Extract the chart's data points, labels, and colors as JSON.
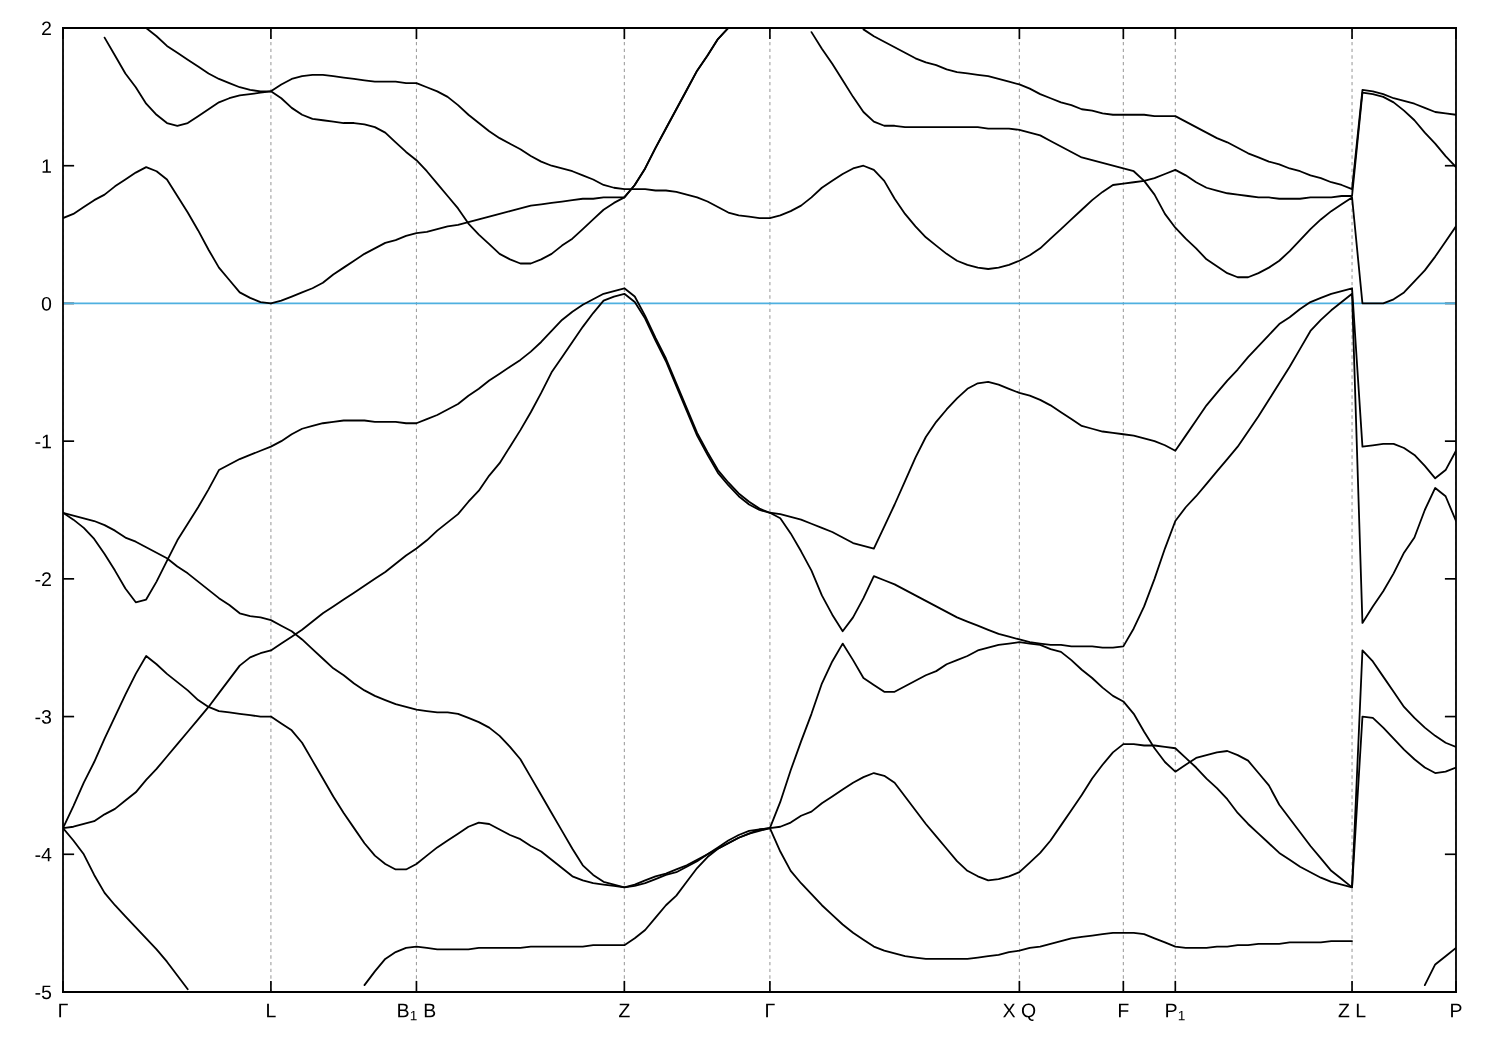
{
  "chart_data": {
    "type": "line",
    "categories": [
      "Γ",
      null,
      null,
      null,
      null,
      null,
      null,
      null,
      null,
      null,
      null,
      null,
      null,
      null,
      null,
      null,
      null,
      null,
      null,
      null,
      "L",
      null,
      null,
      null,
      null,
      null,
      null,
      null,
      null,
      null,
      null,
      null,
      null,
      null,
      "B$_{1}$ B",
      null,
      null,
      null,
      null,
      null,
      null,
      null,
      null,
      null,
      null,
      null,
      null,
      null,
      null,
      null,
      null,
      null,
      null,
      null,
      "Z",
      null,
      null,
      null,
      null,
      null,
      null,
      null,
      null,
      null,
      null,
      null,
      null,
      null,
      "Γ",
      null,
      null,
      null,
      null,
      null,
      null,
      null,
      null,
      null,
      null,
      null,
      null,
      null,
      null,
      null,
      null,
      null,
      null,
      null,
      null,
      null,
      null,
      null,
      "X Q",
      null,
      null,
      null,
      null,
      null,
      null,
      null,
      null,
      null,
      "F",
      null,
      null,
      null,
      null,
      "P$_{1}$",
      null,
      null,
      null,
      null,
      null,
      null,
      null,
      null,
      null,
      null,
      null,
      null,
      null,
      null,
      null,
      null,
      "Z L",
      null,
      null,
      null,
      null,
      null,
      null,
      null,
      null,
      null,
      "P"
    ],
    "ylim": [
      -5,
      2
    ],
    "yticks": [
      -5,
      -4,
      -3,
      -2,
      -1,
      0,
      1,
      2
    ],
    "grid": "x",
    "ref_lines": [
      {
        "axis": "y",
        "value": 0,
        "color": "#4fb0e0"
      }
    ],
    "series": [
      {
        "color": "#000000",
        "values": [
          -3.81,
          -3.9,
          -4.0,
          -4.15,
          -4.28,
          -4.37,
          -4.45,
          -4.53,
          -4.61,
          -4.69,
          -4.78,
          -4.88,
          -4.98,
          null,
          null,
          null,
          null,
          null,
          null,
          null,
          null,
          null,
          null,
          null,
          null,
          null,
          null,
          null,
          null,
          -4.95,
          -4.85,
          -4.76,
          -4.71,
          -4.68,
          -4.67,
          -4.68,
          -4.69,
          -4.69,
          -4.69,
          -4.69,
          -4.68,
          -4.68,
          -4.68,
          -4.68,
          -4.68,
          -4.67,
          -4.67,
          -4.67,
          -4.67,
          -4.67,
          -4.67,
          -4.66,
          -4.66,
          -4.66,
          -4.66,
          -4.61,
          -4.55,
          -4.46,
          -4.37,
          -4.3,
          -4.2,
          -4.1,
          -4.02,
          -3.96,
          -3.92,
          -3.88,
          -3.85,
          -3.83,
          -3.81,
          -3.98,
          -4.12,
          -4.21,
          -4.29,
          -4.37,
          -4.44,
          -4.51,
          -4.57,
          -4.62,
          -4.67,
          -4.7,
          -4.72,
          -4.74,
          -4.75,
          -4.76,
          -4.76,
          -4.76,
          -4.76,
          -4.76,
          -4.75,
          -4.74,
          -4.73,
          -4.71,
          -4.7,
          -4.68,
          -4.67,
          -4.65,
          -4.63,
          -4.61,
          -4.6,
          -4.59,
          -4.58,
          -4.57,
          -4.57,
          -4.57,
          -4.58,
          -4.61,
          -4.64,
          -4.67,
          -4.68,
          -4.68,
          -4.68,
          -4.67,
          -4.67,
          -4.66,
          -4.66,
          -4.65,
          -4.65,
          -4.65,
          -4.64,
          -4.64,
          -4.64,
          -4.64,
          -4.63,
          -4.63,
          -4.63,
          null,
          null,
          null,
          null,
          null,
          null,
          -4.95,
          -4.8,
          -4.74,
          -4.68
        ]
      },
      {
        "color": "#000000",
        "values": [
          -3.81,
          -3.65,
          -3.48,
          -3.33,
          -3.16,
          -3.0,
          -2.84,
          -2.69,
          -2.56,
          -2.62,
          -2.69,
          -2.75,
          -2.81,
          -2.88,
          -2.93,
          -2.96,
          -2.97,
          -2.98,
          -2.99,
          -3.0,
          -3.0,
          -3.05,
          -3.1,
          -3.19,
          -3.32,
          -3.45,
          -3.58,
          -3.7,
          -3.81,
          -3.92,
          -4.01,
          -4.07,
          -4.11,
          -4.11,
          -4.07,
          -4.01,
          -3.95,
          -3.9,
          -3.85,
          -3.8,
          -3.77,
          -3.78,
          -3.82,
          -3.86,
          -3.89,
          -3.94,
          -3.98,
          -4.04,
          -4.1,
          -4.16,
          -4.19,
          -4.21,
          -4.22,
          -4.23,
          -4.24,
          -4.22,
          -4.19,
          -4.16,
          -4.14,
          -4.11,
          -4.08,
          -4.04,
          -4.0,
          -3.95,
          -3.9,
          -3.86,
          -3.83,
          -3.82,
          -3.81,
          -3.8,
          -3.77,
          -3.72,
          -3.69,
          -3.63,
          -3.58,
          -3.53,
          -3.48,
          -3.44,
          -3.41,
          -3.43,
          -3.48,
          -3.58,
          -3.68,
          -3.78,
          -3.87,
          -3.96,
          -4.05,
          -4.12,
          -4.16,
          -4.19,
          -4.18,
          -4.16,
          -4.13,
          -4.06,
          -3.99,
          -3.9,
          -3.79,
          -3.68,
          -3.57,
          -3.45,
          -3.35,
          -3.26,
          -3.2,
          -3.2,
          -3.21,
          -3.21,
          -3.22,
          -3.23,
          -3.3,
          -3.37,
          -3.45,
          -3.52,
          -3.6,
          -3.7,
          -3.78,
          -3.85,
          -3.92,
          -3.99,
          -4.04,
          -4.09,
          -4.13,
          -4.17,
          -4.2,
          -4.22,
          -4.24,
          -3.0,
          -3.01,
          -3.08,
          -3.16,
          -3.24,
          -3.31,
          -3.37,
          -3.41,
          -3.4,
          -3.37
        ]
      },
      {
        "color": "#000000",
        "values": [
          -3.81,
          -3.8,
          -3.78,
          -3.76,
          -3.71,
          -3.67,
          -3.61,
          -3.55,
          -3.46,
          -3.38,
          -3.29,
          -3.2,
          -3.11,
          -3.02,
          -2.93,
          -2.83,
          -2.73,
          -2.63,
          -2.57,
          -2.54,
          -2.52,
          -2.47,
          -2.42,
          -2.37,
          -2.31,
          -2.25,
          -2.2,
          -2.15,
          -2.1,
          -2.05,
          -2.0,
          -1.95,
          -1.89,
          -1.83,
          -1.78,
          -1.72,
          -1.65,
          -1.59,
          -1.53,
          -1.44,
          -1.36,
          -1.25,
          -1.16,
          -1.04,
          -0.92,
          -0.79,
          -0.65,
          -0.5,
          -0.39,
          -0.28,
          -0.17,
          -0.07,
          0.02,
          0.05,
          0.07,
          0.01,
          -0.11,
          -0.27,
          -0.42,
          -0.6,
          -0.78,
          -0.96,
          -1.1,
          -1.23,
          -1.32,
          -1.4,
          -1.46,
          -1.5,
          -1.52,
          -1.56,
          -1.67,
          -1.8,
          -1.94,
          -2.12,
          -2.26,
          -2.38,
          -2.28,
          -2.14,
          -1.98,
          -2.01,
          -2.04,
          -2.08,
          -2.12,
          -2.16,
          -2.2,
          -2.24,
          -2.28,
          -2.31,
          -2.34,
          -2.37,
          -2.4,
          -2.42,
          -2.44,
          -2.46,
          -2.47,
          -2.48,
          -2.48,
          -2.49,
          -2.49,
          -2.49,
          -2.5,
          -2.5,
          -2.49,
          -2.36,
          -2.2,
          -2.0,
          -1.78,
          -1.58,
          -1.48,
          -1.4,
          -1.31,
          -1.22,
          -1.13,
          -1.04,
          -0.93,
          -0.82,
          -0.7,
          -0.58,
          -0.46,
          -0.33,
          -0.2,
          -0.12,
          -0.05,
          0.01,
          0.07,
          -2.32,
          -2.2,
          -2.09,
          -1.96,
          -1.81,
          -1.7,
          -1.5,
          -1.34,
          -1.4,
          -1.58
        ]
      },
      {
        "color": "#000000",
        "values": [
          -1.52,
          -1.54,
          -1.56,
          -1.58,
          -1.61,
          -1.65,
          -1.7,
          -1.73,
          -1.77,
          -1.81,
          -1.85,
          -1.91,
          -1.96,
          -2.02,
          -2.08,
          -2.14,
          -2.19,
          -2.25,
          -2.27,
          -2.28,
          -2.3,
          -2.34,
          -2.38,
          -2.44,
          -2.51,
          -2.58,
          -2.65,
          -2.7,
          -2.76,
          -2.81,
          -2.85,
          -2.88,
          -2.91,
          -2.93,
          -2.95,
          -2.96,
          -2.97,
          -2.97,
          -2.98,
          -3.01,
          -3.04,
          -3.08,
          -3.14,
          -3.22,
          -3.31,
          -3.44,
          -3.57,
          -3.7,
          -3.83,
          -3.96,
          -4.08,
          -4.15,
          -4.2,
          -4.22,
          -4.24,
          -4.23,
          -4.21,
          -4.18,
          -4.15,
          -4.13,
          -4.09,
          -4.05,
          -4.0,
          -3.96,
          -3.92,
          -3.88,
          -3.85,
          -3.82,
          -3.81,
          -3.62,
          -3.39,
          -3.18,
          -2.98,
          -2.76,
          -2.6,
          -2.47,
          -2.59,
          -2.72,
          -2.77,
          -2.82,
          -2.82,
          -2.78,
          -2.74,
          -2.7,
          -2.67,
          -2.62,
          -2.59,
          -2.56,
          -2.52,
          -2.5,
          -2.48,
          -2.47,
          -2.46,
          -2.47,
          -2.48,
          -2.51,
          -2.53,
          -2.59,
          -2.66,
          -2.72,
          -2.79,
          -2.85,
          -2.89,
          -2.98,
          -3.11,
          -3.23,
          -3.33,
          -3.4,
          -3.35,
          -3.3,
          -3.28,
          -3.26,
          -3.25,
          -3.28,
          -3.32,
          -3.41,
          -3.5,
          -3.64,
          -3.74,
          -3.84,
          -3.94,
          -4.03,
          -4.12,
          -4.18,
          -4.24,
          -2.52,
          -2.6,
          -2.71,
          -2.82,
          -2.93,
          -3.01,
          -3.08,
          -3.14,
          -3.19,
          -3.22
        ]
      },
      {
        "color": "#000000",
        "values": [
          -1.52,
          -1.57,
          -1.63,
          -1.71,
          -1.82,
          -1.94,
          -2.07,
          -2.17,
          -2.15,
          -2.02,
          -1.87,
          -1.72,
          -1.6,
          -1.48,
          -1.35,
          -1.21,
          -1.17,
          -1.13,
          -1.1,
          -1.07,
          -1.04,
          -1.0,
          -0.95,
          -0.91,
          -0.89,
          -0.87,
          -0.86,
          -0.85,
          -0.85,
          -0.85,
          -0.86,
          -0.86,
          -0.86,
          -0.87,
          -0.87,
          -0.84,
          -0.81,
          -0.77,
          -0.73,
          -0.67,
          -0.62,
          -0.56,
          -0.51,
          -0.46,
          -0.41,
          -0.35,
          -0.28,
          -0.2,
          -0.12,
          -0.06,
          -0.01,
          0.03,
          0.07,
          0.09,
          0.11,
          0.05,
          -0.09,
          -0.25,
          -0.4,
          -0.58,
          -0.76,
          -0.94,
          -1.08,
          -1.21,
          -1.3,
          -1.38,
          -1.44,
          -1.49,
          -1.52,
          -1.53,
          -1.55,
          -1.57,
          -1.6,
          -1.63,
          -1.66,
          -1.7,
          -1.74,
          -1.76,
          -1.78,
          -1.62,
          -1.46,
          -1.29,
          -1.12,
          -0.97,
          -0.86,
          -0.77,
          -0.69,
          -0.62,
          -0.58,
          -0.57,
          -0.59,
          -0.62,
          -0.65,
          -0.67,
          -0.7,
          -0.74,
          -0.79,
          -0.84,
          -0.89,
          -0.91,
          -0.93,
          -0.94,
          -0.95,
          -0.96,
          -0.98,
          -1.0,
          -1.03,
          -1.07,
          -0.96,
          -0.85,
          -0.74,
          -0.65,
          -0.56,
          -0.48,
          -0.39,
          -0.31,
          -0.23,
          -0.15,
          -0.1,
          -0.04,
          0.01,
          0.04,
          0.07,
          0.09,
          0.11,
          -1.04,
          -1.03,
          -1.02,
          -1.02,
          -1.05,
          -1.1,
          -1.18,
          -1.27,
          -1.21,
          -1.07
        ]
      },
      {
        "color": "#000000",
        "values": [
          0.62,
          0.65,
          0.7,
          0.75,
          0.79,
          0.85,
          0.9,
          0.95,
          0.99,
          0.96,
          0.9,
          0.78,
          0.66,
          0.53,
          0.39,
          0.26,
          0.17,
          0.08,
          0.04,
          0.01,
          0.0,
          0.02,
          0.05,
          0.08,
          0.11,
          0.15,
          0.21,
          0.26,
          0.31,
          0.36,
          0.4,
          0.44,
          0.46,
          0.49,
          0.51,
          0.52,
          0.54,
          0.56,
          0.57,
          0.59,
          0.61,
          0.63,
          0.65,
          0.67,
          0.69,
          0.71,
          0.72,
          0.73,
          0.74,
          0.75,
          0.76,
          0.76,
          0.77,
          0.77,
          0.77,
          0.86,
          0.98,
          1.13,
          1.27,
          1.41,
          1.55,
          1.69,
          1.8,
          1.92,
          2.0,
          null,
          null,
          null,
          null,
          null,
          null,
          null,
          1.97,
          1.85,
          1.74,
          1.62,
          1.5,
          1.39,
          1.32,
          1.29,
          1.29,
          1.28,
          1.28,
          1.28,
          1.28,
          1.28,
          1.28,
          1.28,
          1.28,
          1.27,
          1.27,
          1.27,
          1.26,
          1.24,
          1.22,
          1.18,
          1.14,
          1.1,
          1.06,
          1.04,
          1.02,
          1.0,
          0.98,
          0.96,
          0.89,
          0.79,
          0.65,
          0.55,
          0.47,
          0.4,
          0.32,
          0.27,
          0.22,
          0.19,
          0.19,
          0.22,
          0.26,
          0.31,
          0.38,
          0.46,
          0.54,
          0.61,
          0.67,
          0.72,
          0.77,
          0.0,
          0.0,
          0.0,
          0.03,
          0.08,
          0.16,
          0.24,
          0.34,
          0.45,
          0.56
        ]
      },
      {
        "color": "#000000",
        "values": [
          null,
          null,
          null,
          null,
          1.93,
          1.8,
          1.67,
          1.57,
          1.45,
          1.37,
          1.31,
          1.29,
          1.31,
          1.36,
          1.41,
          1.46,
          1.49,
          1.51,
          1.52,
          1.53,
          1.54,
          1.49,
          1.42,
          1.37,
          1.34,
          1.33,
          1.32,
          1.31,
          1.31,
          1.3,
          1.28,
          1.24,
          1.17,
          1.1,
          1.04,
          0.96,
          0.87,
          0.78,
          0.69,
          0.58,
          0.5,
          0.43,
          0.36,
          0.32,
          0.29,
          0.29,
          0.32,
          0.36,
          0.42,
          0.47,
          0.54,
          0.61,
          0.68,
          0.73,
          0.77,
          0.86,
          0.98,
          1.13,
          1.27,
          1.41,
          1.55,
          1.69,
          1.8,
          1.92,
          2.0,
          null,
          null,
          null,
          null,
          null,
          null,
          null,
          null,
          null,
          null,
          null,
          null,
          1.99,
          1.94,
          1.9,
          1.86,
          1.82,
          1.78,
          1.75,
          1.73,
          1.7,
          1.68,
          1.67,
          1.66,
          1.65,
          1.63,
          1.61,
          1.59,
          1.56,
          1.52,
          1.49,
          1.46,
          1.44,
          1.41,
          1.4,
          1.38,
          1.37,
          1.37,
          1.37,
          1.37,
          1.36,
          1.36,
          1.36,
          1.32,
          1.28,
          1.24,
          1.2,
          1.17,
          1.13,
          1.09,
          1.06,
          1.03,
          1.01,
          0.98,
          0.96,
          0.93,
          0.91,
          0.88,
          0.86,
          0.83,
          1.55,
          1.54,
          1.52,
          1.49,
          1.47,
          1.45,
          1.42,
          1.39,
          1.38,
          1.37
        ]
      },
      {
        "color": "#000000",
        "values": [
          null,
          null,
          null,
          null,
          null,
          null,
          null,
          null,
          2.0,
          1.94,
          1.87,
          1.82,
          1.77,
          1.72,
          1.67,
          1.63,
          1.6,
          1.57,
          1.55,
          1.54,
          1.54,
          1.59,
          1.63,
          1.65,
          1.66,
          1.66,
          1.65,
          1.64,
          1.63,
          1.62,
          1.61,
          1.61,
          1.61,
          1.6,
          1.6,
          1.57,
          1.54,
          1.5,
          1.44,
          1.37,
          1.31,
          1.25,
          1.2,
          1.16,
          1.12,
          1.07,
          1.03,
          1.0,
          0.98,
          0.96,
          0.93,
          0.9,
          0.86,
          0.84,
          0.83,
          0.83,
          0.83,
          0.82,
          0.82,
          0.81,
          0.79,
          0.77,
          0.74,
          0.7,
          0.66,
          0.64,
          0.63,
          0.62,
          0.62,
          0.64,
          0.67,
          0.71,
          0.77,
          0.84,
          0.89,
          0.94,
          0.98,
          1.0,
          0.97,
          0.89,
          0.76,
          0.65,
          0.56,
          0.48,
          0.42,
          0.36,
          0.31,
          0.28,
          0.26,
          0.25,
          0.26,
          0.28,
          0.31,
          0.35,
          0.4,
          0.47,
          0.54,
          0.61,
          0.68,
          0.75,
          0.81,
          0.86,
          0.87,
          0.88,
          0.89,
          0.91,
          0.94,
          0.97,
          0.93,
          0.88,
          0.84,
          0.82,
          0.8,
          0.79,
          0.78,
          0.77,
          0.77,
          0.76,
          0.76,
          0.76,
          0.77,
          0.77,
          0.77,
          0.78,
          0.78,
          1.53,
          1.52,
          1.5,
          1.46,
          1.4,
          1.33,
          1.24,
          1.16,
          1.07,
          0.99
        ]
      }
    ]
  }
}
